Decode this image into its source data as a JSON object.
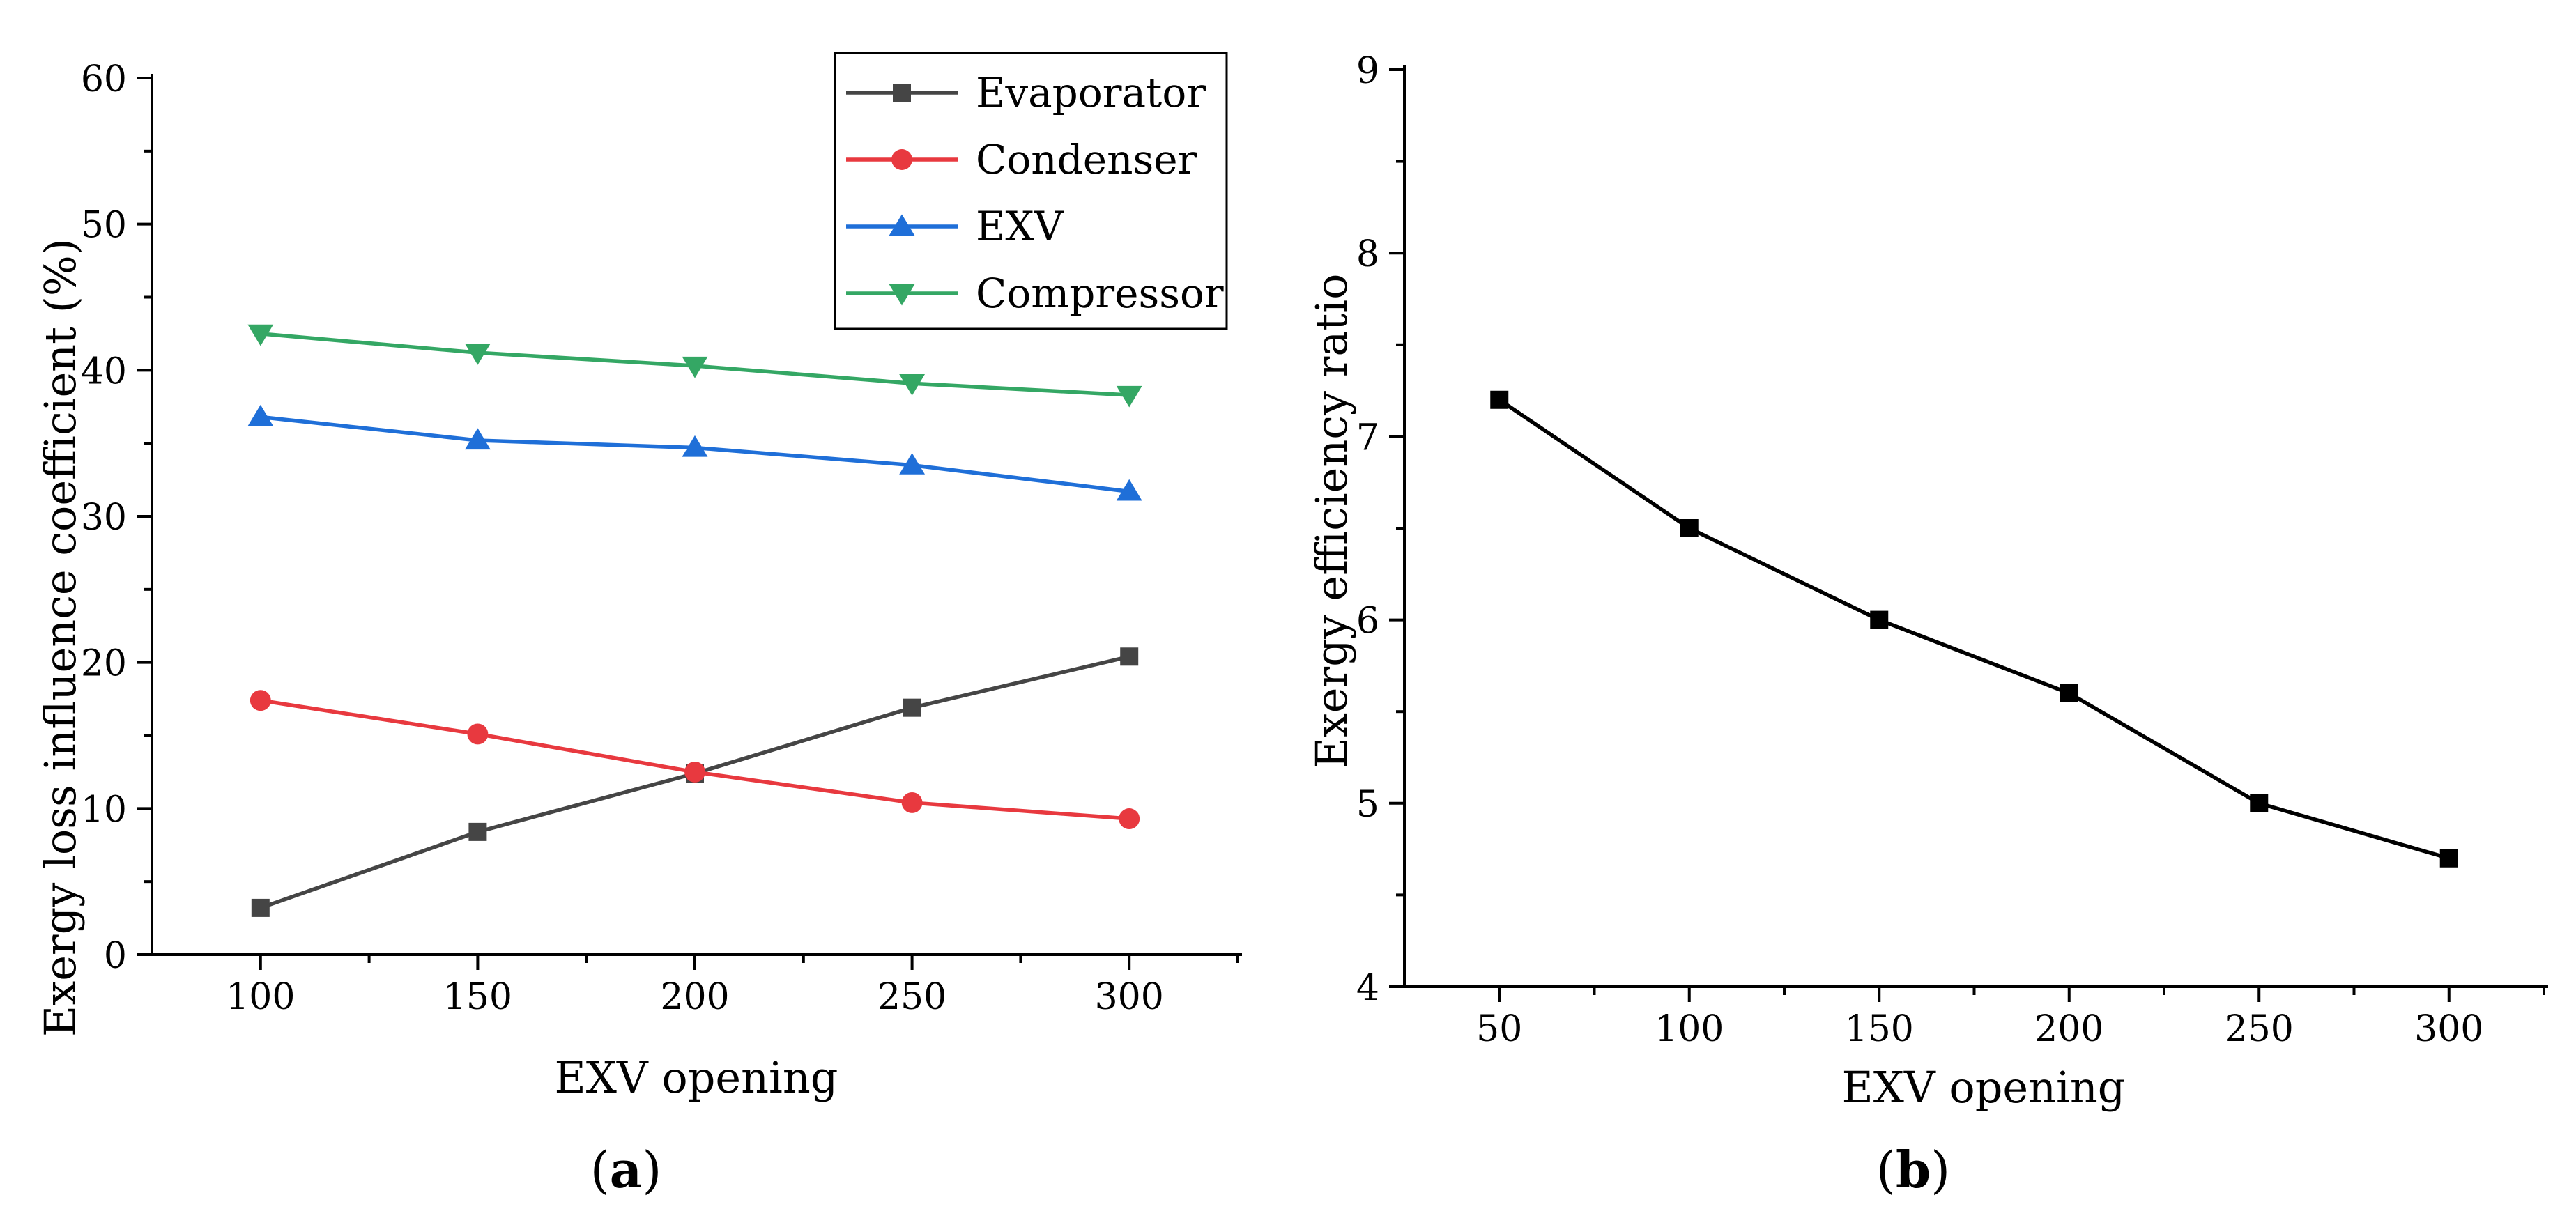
{
  "chart_data": [
    {
      "type": "line",
      "panel_label": "a",
      "xlabel": "EXV opening",
      "ylabel": "Exergy loss influence coefficient (%)",
      "xlim": [
        75,
        325
      ],
      "ylim": [
        0,
        60
      ],
      "xticks": [
        100,
        150,
        200,
        250,
        300
      ],
      "yticks": [
        0,
        10,
        20,
        30,
        40,
        50,
        60
      ],
      "x": [
        100,
        150,
        200,
        250,
        300
      ],
      "legend_position": "top-right",
      "series": [
        {
          "name": "Evaporator",
          "color": "#454545",
          "marker": "square",
          "values": [
            3.2,
            8.4,
            12.4,
            16.9,
            20.4
          ]
        },
        {
          "name": "Condenser",
          "color": "#e8393f",
          "marker": "circle",
          "values": [
            17.4,
            15.1,
            12.5,
            10.4,
            9.3
          ]
        },
        {
          "name": "EXV",
          "color": "#1f6fd8",
          "marker": "triangle-up",
          "values": [
            36.8,
            35.2,
            34.7,
            33.5,
            31.7
          ]
        },
        {
          "name": "Compressor",
          "color": "#34a764",
          "marker": "triangle-down",
          "values": [
            42.5,
            41.2,
            40.3,
            39.1,
            38.3
          ]
        }
      ]
    },
    {
      "type": "line",
      "panel_label": "b",
      "xlabel": "EXV opening",
      "ylabel": "Exergy efficiency ratio",
      "xlim": [
        25,
        325
      ],
      "ylim": [
        4,
        9
      ],
      "xticks": [
        50,
        100,
        150,
        200,
        250,
        300
      ],
      "yticks": [
        4,
        5,
        6,
        7,
        8,
        9
      ],
      "x": [
        50,
        100,
        150,
        200,
        250,
        300
      ],
      "series": [
        {
          "color": "#000000",
          "marker": "square",
          "values": [
            7.2,
            6.5,
            6.0,
            5.6,
            5.0,
            4.7
          ]
        }
      ]
    }
  ]
}
